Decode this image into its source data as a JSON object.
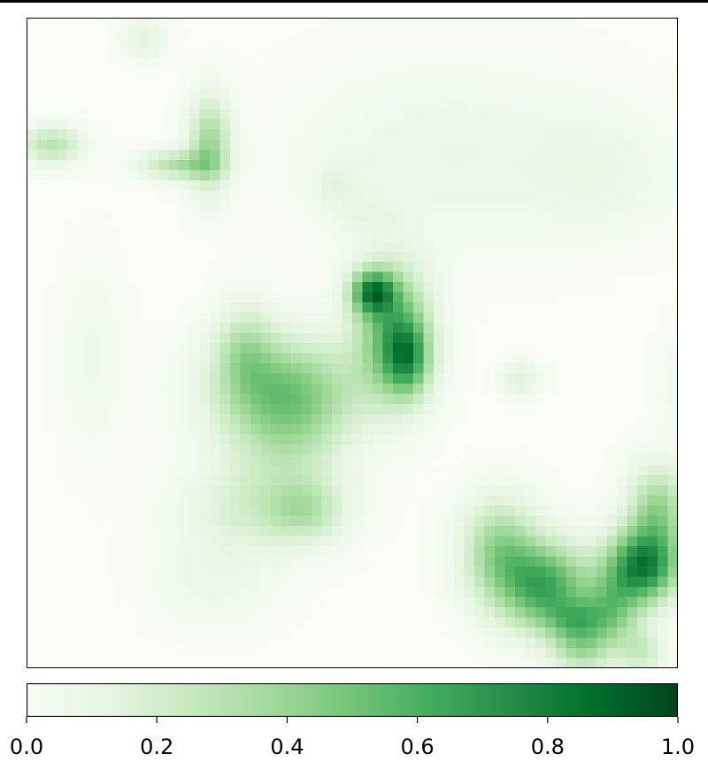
{
  "chart_data": {
    "type": "heatmap",
    "colormap": "Greens",
    "grid": false,
    "axes_ticks_visible": false,
    "colorbar": {
      "orientation": "horizontal",
      "position": "bottom",
      "range": [
        0.0,
        1.0
      ],
      "tick_values": [
        0.0,
        0.2,
        0.4,
        0.6,
        0.8,
        1.0
      ],
      "tick_labels": [
        "0.0",
        "0.2",
        "0.4",
        "0.6",
        "0.8",
        "1.0"
      ]
    },
    "cols": 64,
    "rows": 64,
    "blobs": [
      {
        "cx": 11.0,
        "cy": 1.5,
        "sx": 1.5,
        "sy": 1.5,
        "amp": 0.12
      },
      {
        "cx": 2.0,
        "cy": 12.0,
        "sx": 2.0,
        "sy": 1.3,
        "amp": 0.3
      },
      {
        "cx": 17.5,
        "cy": 12.0,
        "sx": 1.4,
        "sy": 3.2,
        "amp": 0.38
      },
      {
        "cx": 14.5,
        "cy": 14.0,
        "sx": 2.5,
        "sy": 1.0,
        "amp": 0.32
      },
      {
        "cx": 41.0,
        "cy": 13.0,
        "sx": 10.0,
        "sy": 6.0,
        "amp": 0.08
      },
      {
        "cx": 56.0,
        "cy": 15.0,
        "sx": 5.0,
        "sy": 4.0,
        "amp": 0.07
      },
      {
        "cx": 30.0,
        "cy": 16.0,
        "sx": 1.5,
        "sy": 1.5,
        "amp": 0.1
      },
      {
        "cx": 33.0,
        "cy": 19.0,
        "sx": 2.0,
        "sy": 1.5,
        "amp": 0.08
      },
      {
        "cx": 33.5,
        "cy": 26.5,
        "sx": 1.5,
        "sy": 1.5,
        "amp": 0.65
      },
      {
        "cx": 35.5,
        "cy": 30.5,
        "sx": 2.5,
        "sy": 4.5,
        "amp": 0.55
      },
      {
        "cx": 37.0,
        "cy": 33.0,
        "sx": 1.5,
        "sy": 2.5,
        "amp": 0.45
      },
      {
        "cx": 25.0,
        "cy": 36.0,
        "sx": 5.0,
        "sy": 3.5,
        "amp": 0.42
      },
      {
        "cx": 21.0,
        "cy": 32.0,
        "sx": 2.0,
        "sy": 3.0,
        "amp": 0.25
      },
      {
        "cx": 25.0,
        "cy": 41.0,
        "sx": 4.0,
        "sy": 4.0,
        "amp": 0.22
      },
      {
        "cx": 22.0,
        "cy": 48.0,
        "sx": 5.0,
        "sy": 3.0,
        "amp": 0.18
      },
      {
        "cx": 27.0,
        "cy": 48.0,
        "sx": 2.5,
        "sy": 2.0,
        "amp": 0.22
      },
      {
        "cx": 6.0,
        "cy": 33.0,
        "sx": 2.0,
        "sy": 6.0,
        "amp": 0.06
      },
      {
        "cx": 18.0,
        "cy": 55.0,
        "sx": 4.0,
        "sy": 3.0,
        "amp": 0.07
      },
      {
        "cx": 48.0,
        "cy": 35.0,
        "sx": 1.2,
        "sy": 1.2,
        "amp": 0.15
      },
      {
        "cx": 46.0,
        "cy": 52.0,
        "sx": 2.5,
        "sy": 3.5,
        "amp": 0.4
      },
      {
        "cx": 50.5,
        "cy": 55.5,
        "sx": 3.0,
        "sy": 3.0,
        "amp": 0.62
      },
      {
        "cx": 53.5,
        "cy": 59.0,
        "sx": 2.0,
        "sy": 1.5,
        "amp": 0.35
      },
      {
        "cx": 54.0,
        "cy": 62.0,
        "sx": 2.0,
        "sy": 1.5,
        "amp": 0.28
      },
      {
        "cx": 60.0,
        "cy": 53.5,
        "sx": 2.5,
        "sy": 2.5,
        "amp": 0.78
      },
      {
        "cx": 61.5,
        "cy": 48.0,
        "sx": 2.0,
        "sy": 3.0,
        "amp": 0.4
      },
      {
        "cx": 57.0,
        "cy": 58.0,
        "sx": 2.0,
        "sy": 2.5,
        "amp": 0.38
      },
      {
        "cx": 60.0,
        "cy": 62.0,
        "sx": 1.5,
        "sy": 1.5,
        "amp": 0.22
      },
      {
        "cx": 64.0,
        "cy": 36.0,
        "sx": 1.5,
        "sy": 4.0,
        "amp": 0.06
      }
    ]
  }
}
